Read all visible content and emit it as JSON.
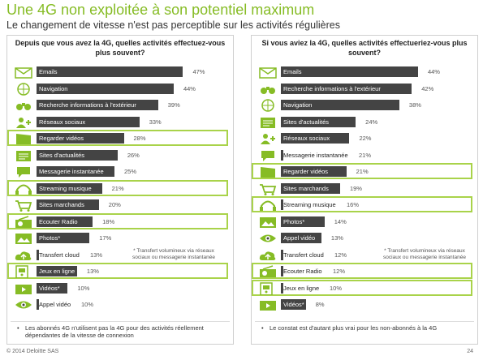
{
  "title": "Une 4G non exploitée à son potentiel maximum",
  "subtitle": "Le changement de vitesse n'est pas perceptible sur les activités régulières",
  "chart_data": [
    {
      "type": "bar",
      "title": "Depuis que vous avez la 4G, quelles activités effectuez-vous plus souvent?",
      "categories": [
        "Emails",
        "Navigation",
        "Recherche informations à l'extérieur",
        "Réseaux sociaux",
        "Regarder vidéos",
        "Sites d'actualités",
        "Messagerie instantanée",
        "Streaming musique",
        "Sites marchands",
        "Ecouter Radio",
        "Photos*",
        "Transfert cloud",
        "Jeux en ligne",
        "Vidéos*",
        "Appel vidéo"
      ],
      "values": [
        47,
        44,
        39,
        33,
        28,
        26,
        25,
        21,
        20,
        18,
        17,
        13,
        13,
        10,
        10
      ],
      "labels": [
        "47%",
        "44%",
        "39%",
        "33%",
        "28%",
        "26%",
        "25%",
        "21%",
        "20%",
        "18%",
        "17%",
        "13%",
        "13%",
        "10%",
        "10%"
      ],
      "highlighted": [
        "Regarder vidéos",
        "Streaming musique",
        "Ecouter Radio",
        "Jeux en ligne"
      ],
      "icons": [
        "envelope-icon",
        "globe-icon",
        "binoculars-icon",
        "people-icon",
        "film-clapper-icon",
        "newspaper-icon",
        "speech-bubble-icon",
        "headphones-icon",
        "shopping-cart-icon",
        "radio-icon",
        "photo-icon",
        "cloud-upload-icon",
        "gamepad-icon",
        "video-icon",
        "eye-icon"
      ],
      "note": "* Transfert volumineux via réseaux sociaux ou messagerie instantanée",
      "footnote": "Les abonnés 4G n'utilisent pas la 4G pour des activités réellement dépendantes de la vitesse de connexion",
      "xlim": [
        0,
        50
      ]
    },
    {
      "type": "bar",
      "title": "Si vous aviez la 4G, quelles activités effectueriez-vous plus souvent?",
      "categories": [
        "Emails",
        "Recherche informations à l'extérieur",
        "Navigation",
        "Sites d'actualités",
        "Réseaux sociaux",
        "Messagerie instantanée",
        "Regarder vidéos",
        "Sites marchands",
        "Streaming musique",
        "Photos*",
        "Appel vidéo",
        "Transfert cloud",
        "Ecouter Radio",
        "Jeux en ligne",
        "Vidéos*"
      ],
      "values": [
        44,
        42,
        38,
        24,
        22,
        21,
        21,
        19,
        16,
        14,
        13,
        12,
        12,
        10,
        8
      ],
      "labels": [
        "44%",
        "42%",
        "38%",
        "24%",
        "22%",
        "21%",
        "21%",
        "19%",
        "16%",
        "14%",
        "13%",
        "12%",
        "12%",
        "10%",
        "8%"
      ],
      "highlighted": [
        "Regarder vidéos",
        "Streaming musique",
        "Ecouter Radio",
        "Jeux en ligne"
      ],
      "icons": [
        "envelope-icon",
        "binoculars-icon",
        "globe-icon",
        "newspaper-icon",
        "people-icon",
        "speech-bubble-icon",
        "film-clapper-icon",
        "shopping-cart-icon",
        "headphones-icon",
        "photo-icon",
        "eye-icon",
        "cloud-upload-icon",
        "radio-icon",
        "gamepad-icon",
        "video-icon"
      ],
      "note": "* Transfert volumineux via réseaux sociaux ou messagerie instantanée",
      "footnote": "Le constat est d'autant plus vrai pour les non-abonnés à la 4G",
      "xlim": [
        0,
        50
      ]
    }
  ],
  "footer": {
    "copyright": "© 2014 Deloitte SAS",
    "page": "24"
  },
  "colors": {
    "accent": "#86bc25",
    "highlight": "#a9d34a",
    "bar": "#444444"
  }
}
